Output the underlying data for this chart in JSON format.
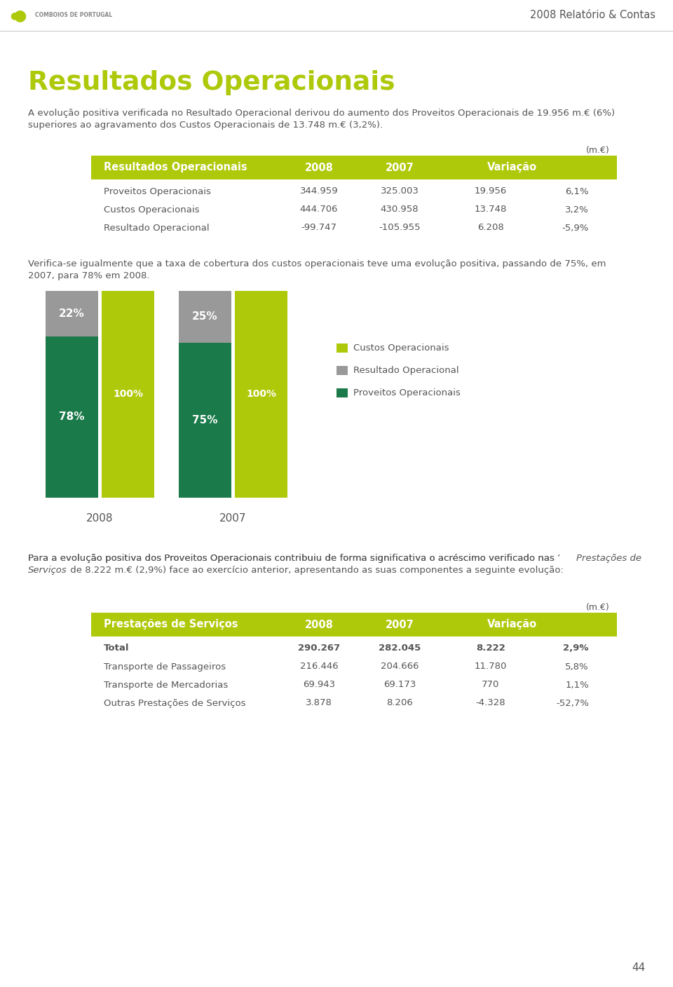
{
  "page_bg": "#ffffff",
  "header_right_text": "2008 Relatório & Contas",
  "header_right_color": "#555555",
  "title": "Resultados Operacionais",
  "title_color": "#aec90a",
  "intro_line1": "A evolução positiva verificada no Resultado Operacional derivou do aumento dos Proveitos Operacionais de 19.956 m.€ (6%)",
  "intro_line2": "superiores ao agravamento dos Custos Operacionais de 13.748 m.€ (3,2%).",
  "intro_color": "#555555",
  "table1_header_bg": "#aec90a",
  "table1_header_cols": [
    "Resultados Operacionais",
    "2008",
    "2007",
    "Variação"
  ],
  "table1_unit": "(m.€)",
  "table1_rows": [
    [
      "Proveitos Operacionais",
      "344.959",
      "325.003",
      "19.956",
      "6,1%"
    ],
    [
      "Custos Operacionais",
      "444.706",
      "430.958",
      "13.748",
      "3,2%"
    ],
    [
      "Resultado Operacional",
      "-99.747",
      "-105.955",
      "6.208",
      "-5,9%"
    ]
  ],
  "table1_text_color": "#555555",
  "chart_line1": "Verifica-se igualmente que a taxa de cobertura dos custos operacionais teve uma evolução positiva, passando de 75%, em",
  "chart_line2": "2007, para 78% em 2008.",
  "chart_text_color": "#555555",
  "bar_green_color": "#1a7a4a",
  "bar_gray_color": "#999999",
  "bar_lime_color": "#aec90a",
  "legend_labels": [
    "Custos Operacionais",
    "Resultado Operacional",
    "Proveitos Operacionais"
  ],
  "legend_colors": [
    "#aec90a",
    "#999999",
    "#1a7a4a"
  ],
  "para2_line1": "Para a evolução positiva dos Proveitos Operacionais contribuiu de forma significativa o acréscimo verificado nas ’Prestações de",
  "para2_line2": "Serviços‘ de 8.222 m.€ (2,9%) face ao exercício anterior, apresentando as suas componentes a seguinte evolução:",
  "para2_color": "#555555",
  "table2_header_bg": "#aec90a",
  "table2_header_cols": [
    "Prestações de Serviços",
    "2008",
    "2007",
    "Variação"
  ],
  "table2_unit": "(m.€)",
  "table2_rows": [
    [
      "Total",
      "290.267",
      "282.045",
      "8.222",
      "2,9%"
    ],
    [
      "Transporte de Passageiros",
      "216.446",
      "204.666",
      "11.780",
      "5,8%"
    ],
    [
      "Transporte de Mercadorias",
      "69.943",
      "69.173",
      "770",
      "1,1%"
    ],
    [
      "Outras Prestações de Serviços",
      "3.878",
      "8.206",
      "-4.328",
      "-52,7%"
    ]
  ],
  "table2_text_color": "#555555",
  "footer_text": "44",
  "footer_color": "#555555"
}
